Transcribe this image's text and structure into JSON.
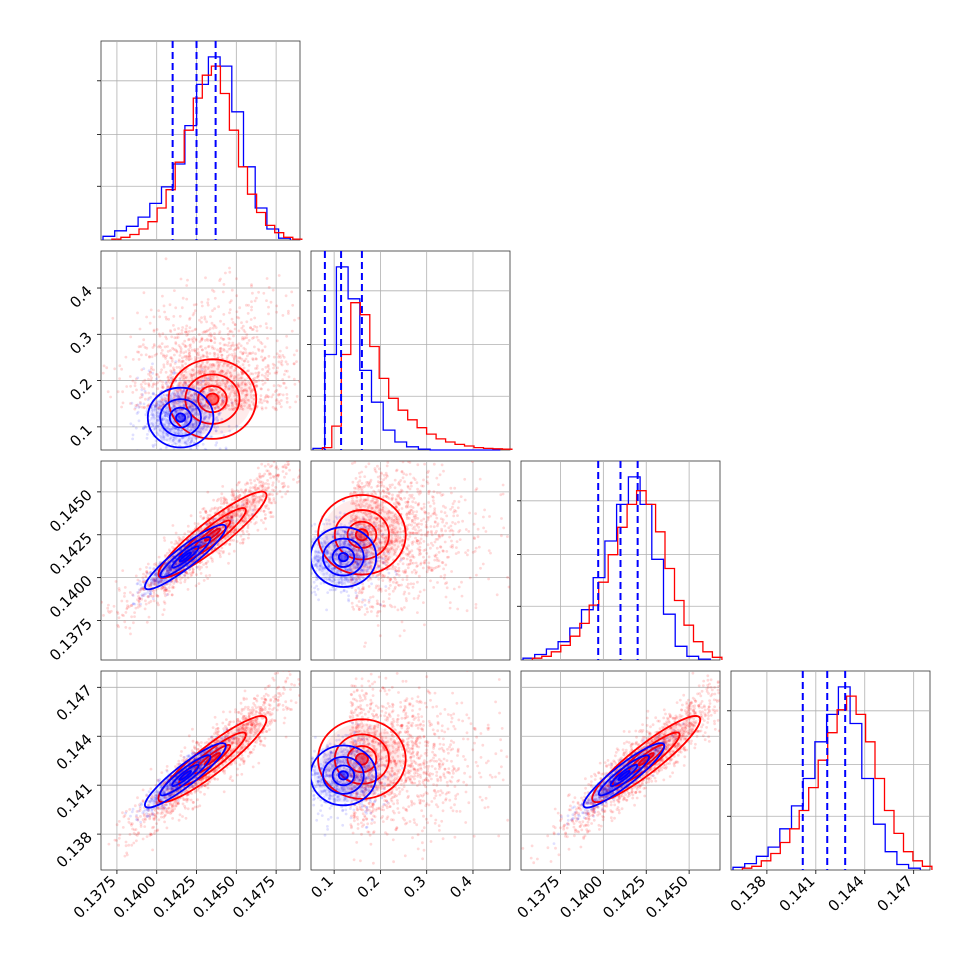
{
  "colors": {
    "blue": "#0000ff",
    "red": "#ff0000"
  },
  "chart_data": {
    "type": "corner",
    "parameters": 4,
    "grid": true,
    "series": [
      {
        "color": "#0000ff",
        "marginals": [
          {
            "hist": [
              0.4,
              1,
              1.5,
              2.5,
              4,
              5.8,
              8.3,
              12.5,
              17,
              20,
              19,
              14,
              8,
              3.5,
              1.2,
              0.2
            ],
            "quantiles": [
              0.141,
              0.1425,
              0.1437
            ]
          },
          {
            "hist": [
              0.2,
              12,
              23,
              19,
              10,
              6,
              2.5,
              1,
              0.4,
              0.1,
              0,
              0,
              0,
              0,
              0,
              0
            ],
            "quantiles": [
              0.08,
              0.115,
              0.16
            ]
          },
          {
            "hist": [
              0.2,
              0.6,
              1.2,
              2,
              3.5,
              5.5,
              9,
              13,
              17,
              20,
              17,
              11,
              5,
              1.5,
              0.4,
              0.1
            ],
            "quantiles": [
              0.1397,
              0.141,
              0.142
            ]
          },
          {
            "hist": [
              0.3,
              0.7,
              1.5,
              2.5,
              4.5,
              7,
              10,
              14,
              17,
              20,
              16,
              10,
              5,
              2,
              0.6,
              0.2
            ],
            "quantiles": [
              0.1402,
              0.1417,
              0.1428
            ]
          }
        ]
      },
      {
        "color": "#ff0000",
        "marginals": [
          {
            "hist": [
              0.1,
              0.3,
              0.6,
              1.2,
              2,
              3.5,
              5.5,
              8.5,
              12,
              15.5,
              18,
              19,
              16,
              12,
              8,
              5,
              3,
              1.6,
              0.8,
              0.3,
              0.1
            ]
          },
          {
            "hist": [
              0.3,
              3,
              12,
              18.5,
              17,
              13,
              9,
              6.5,
              5,
              3.8,
              2.8,
              2,
              1.4,
              1,
              0.7,
              0.5,
              0.3,
              0.2,
              0.15,
              0.1
            ]
          },
          {
            "hist": [
              0.2,
              0.4,
              0.9,
              1.6,
              2.6,
              4,
              6,
              8.5,
              11.5,
              14.5,
              17,
              18.5,
              17,
              14,
              10,
              6.5,
              3.8,
              2,
              0.9,
              0.3
            ]
          },
          {
            "hist": [
              0.2,
              0.4,
              1,
              1.8,
              3,
              4.5,
              6.5,
              9,
              12,
              15,
              17.5,
              19,
              17,
              14,
              10,
              6.5,
              4,
              2,
              1,
              0.4
            ]
          }
        ]
      }
    ],
    "panels": [
      {
        "row": 1,
        "col": 0,
        "blue_center": [
          0.1415,
          0.12
        ],
        "red_center": [
          0.1435,
          0.16
        ]
      },
      {
        "row": 2,
        "col": 0,
        "blue_center": [
          0.1418,
          0.1412
        ],
        "red_center": [
          0.1435,
          0.1425
        ]
      },
      {
        "row": 2,
        "col": 1,
        "blue_center": [
          0.12,
          0.1412
        ],
        "red_center": [
          0.16,
          0.1425
        ]
      },
      {
        "row": 3,
        "col": 0,
        "blue_center": [
          0.1418,
          0.1416
        ],
        "red_center": [
          0.1435,
          0.1426
        ]
      },
      {
        "row": 3,
        "col": 1,
        "blue_center": [
          0.12,
          0.1416
        ],
        "red_center": [
          0.16,
          0.1426
        ]
      },
      {
        "row": 3,
        "col": 2,
        "blue_center": [
          0.1412,
          0.1416
        ],
        "red_center": [
          0.1425,
          0.1426
        ]
      }
    ],
    "axes": [
      {
        "range": [
          0.1365,
          0.149
        ],
        "ticks": [
          "0.1375",
          "0.1400",
          "0.1425",
          "0.1450",
          "0.1475"
        ]
      },
      {
        "range": [
          0.05,
          0.48
        ],
        "ticks": [
          "0.1",
          "0.2",
          "0.3",
          "0.4"
        ]
      },
      {
        "range": [
          0.1352,
          0.1468
        ],
        "ticks": [
          "0.1375",
          "0.1400",
          "0.1425",
          "0.1450"
        ]
      },
      {
        "range": [
          0.1358,
          0.148
        ],
        "ticks": [
          "0.138",
          "0.141",
          "0.144",
          "0.147"
        ]
      }
    ]
  }
}
